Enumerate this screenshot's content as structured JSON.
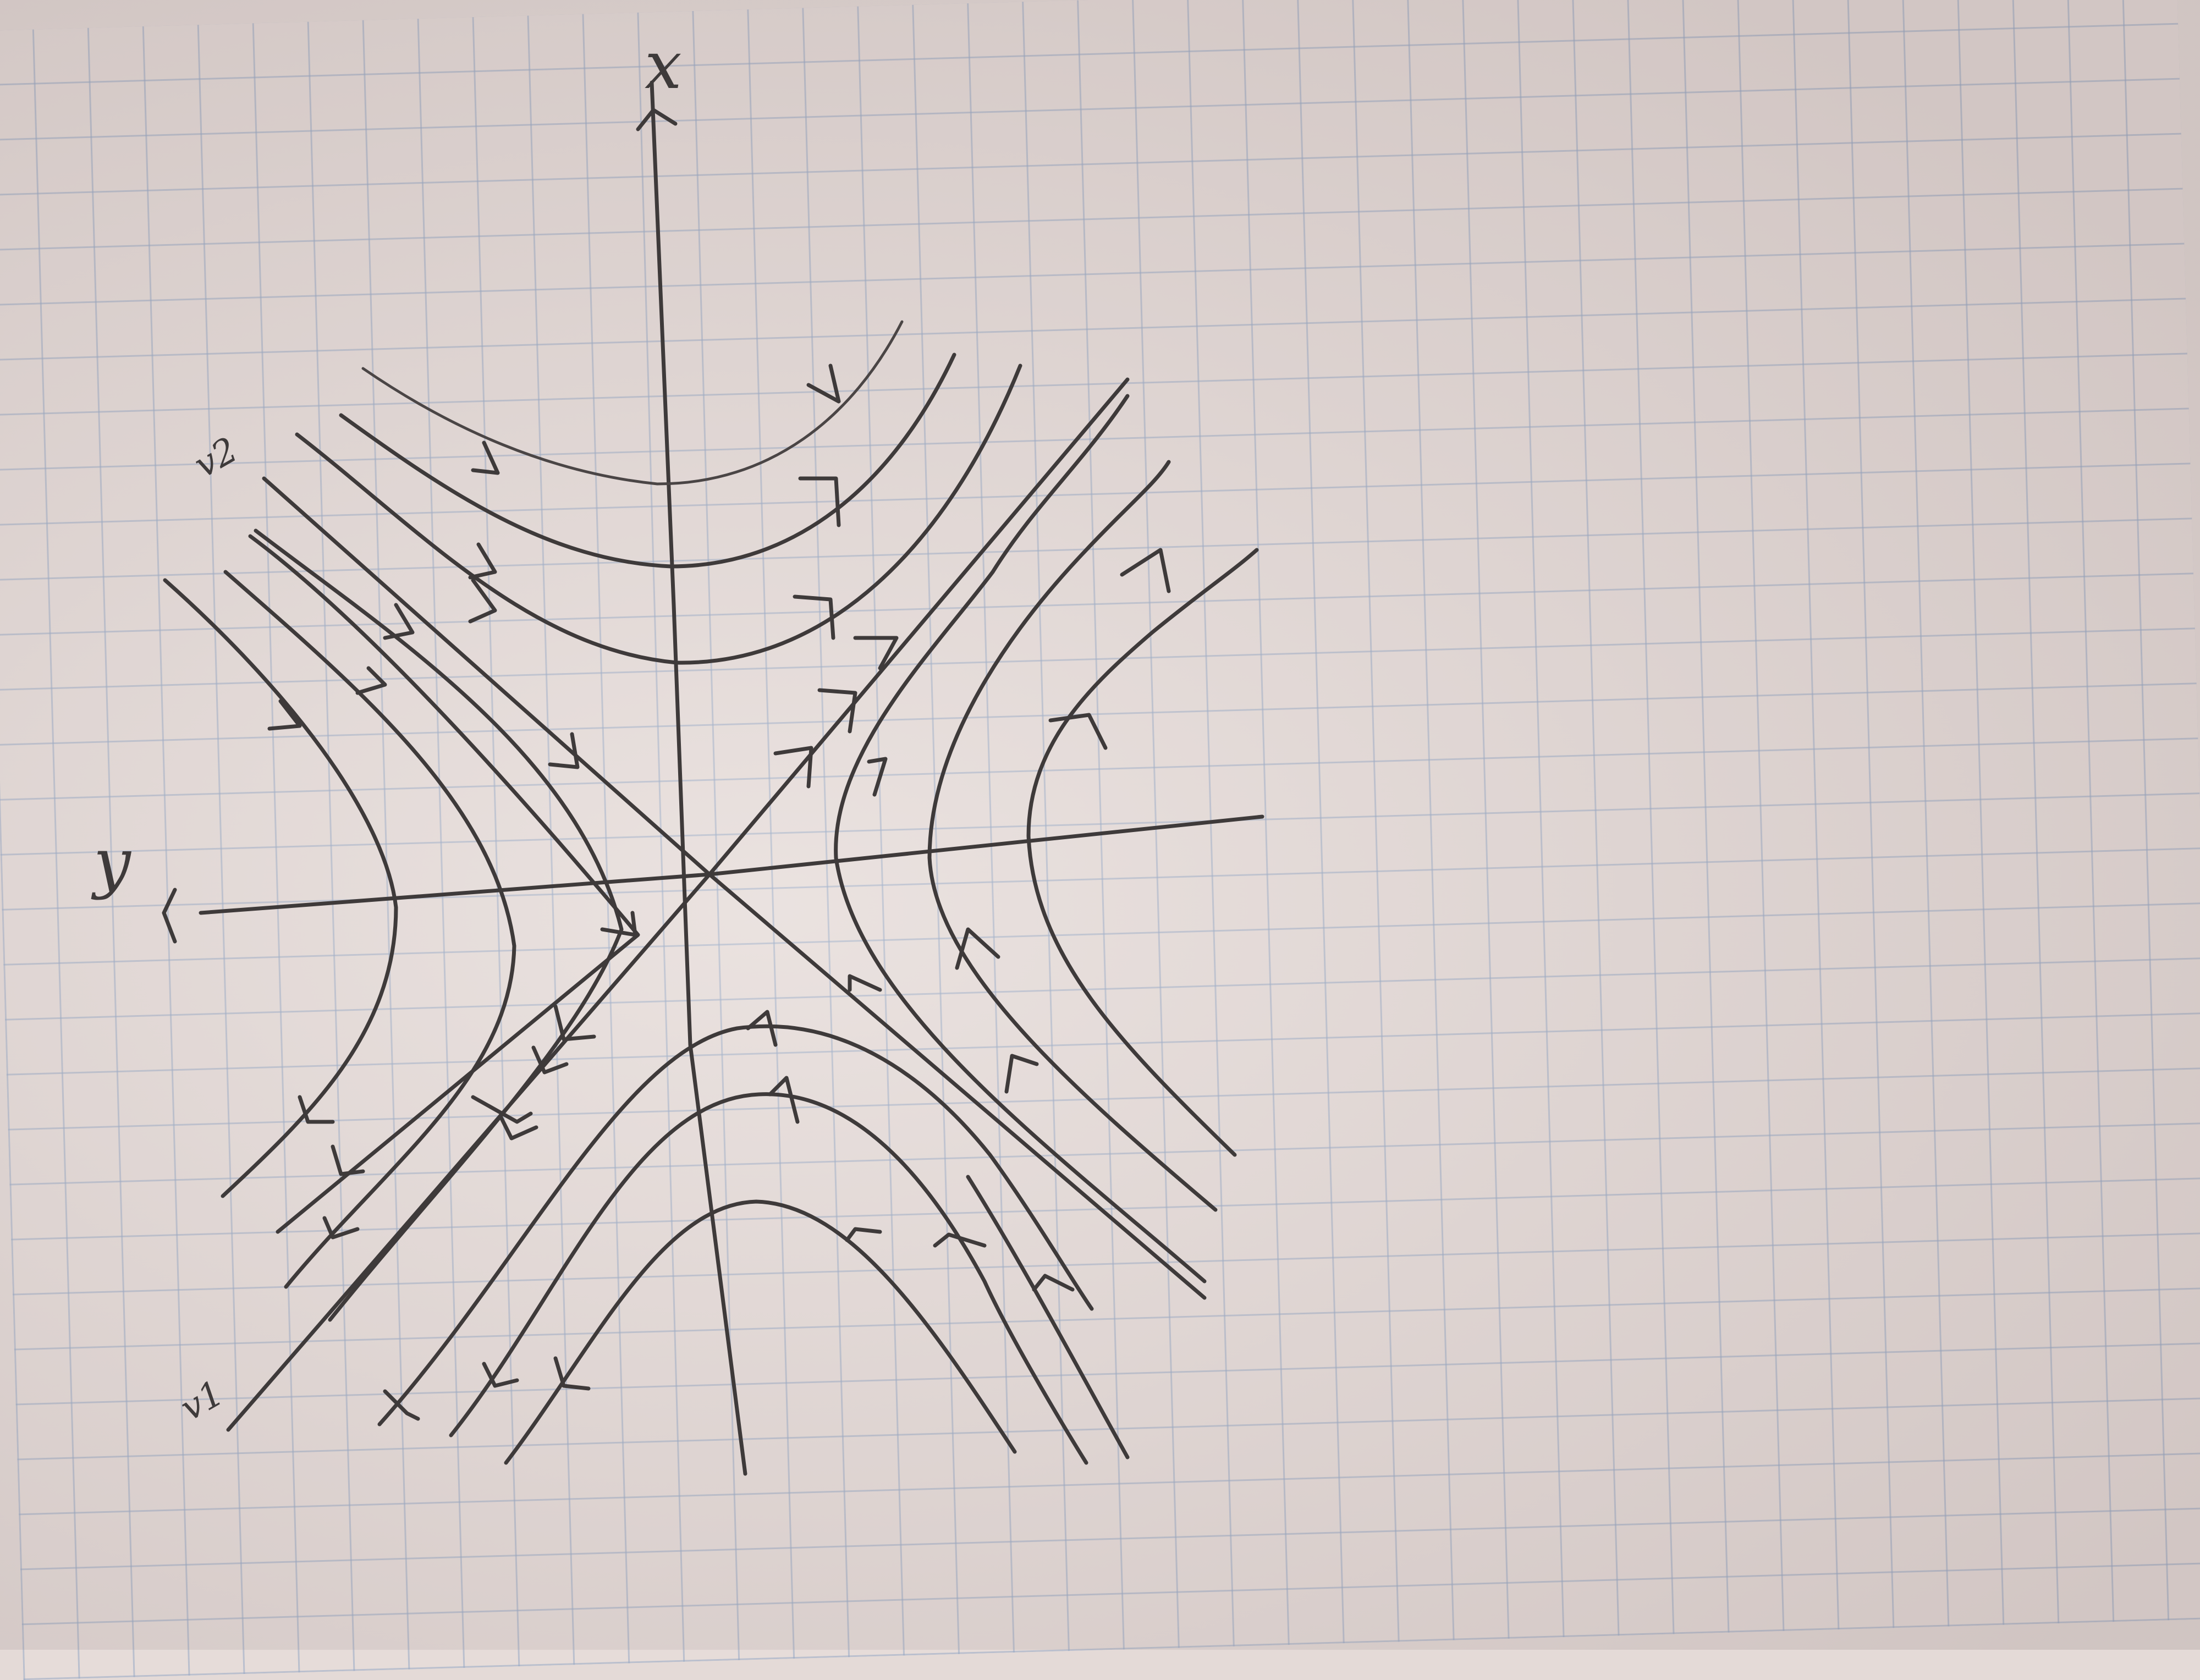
{
  "labels": {
    "vertical_axis": "x",
    "horizontal_axis": "y",
    "eigenvector_1": "v1",
    "eigenvector_2": "v2"
  },
  "colors": {
    "paper": "#e6dcd9",
    "grid": "#96a8c4",
    "ink": "#3e3a3a"
  }
}
